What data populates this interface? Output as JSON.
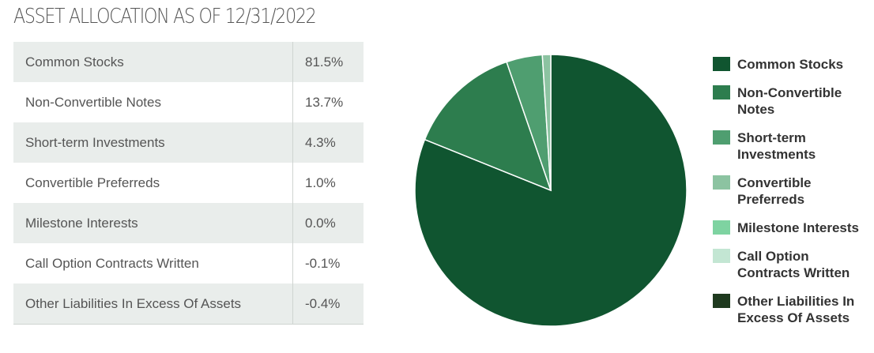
{
  "chart_data": {
    "type": "pie",
    "title": "ASSET ALLOCATION AS OF 12/31/2022",
    "categories": [
      "Common Stocks",
      "Non-Convertible Notes",
      "Short-term Investments",
      "Convertible Preferreds",
      "Milestone Interests",
      "Call Option Contracts Written",
      "Other Liabilities In Excess Of Assets"
    ],
    "values": [
      81.5,
      13.7,
      4.3,
      1.0,
      0.0,
      -0.1,
      -0.4
    ],
    "value_labels": [
      "81.5%",
      "13.7%",
      "4.3%",
      "1.0%",
      "0.0%",
      "-0.1%",
      "-0.4%"
    ],
    "colors": [
      "#105530",
      "#2d7d4e",
      "#4f9e70",
      "#8cc3a1",
      "#7ed3a1",
      "#c3e6d3",
      "#1f3a1f"
    ]
  }
}
